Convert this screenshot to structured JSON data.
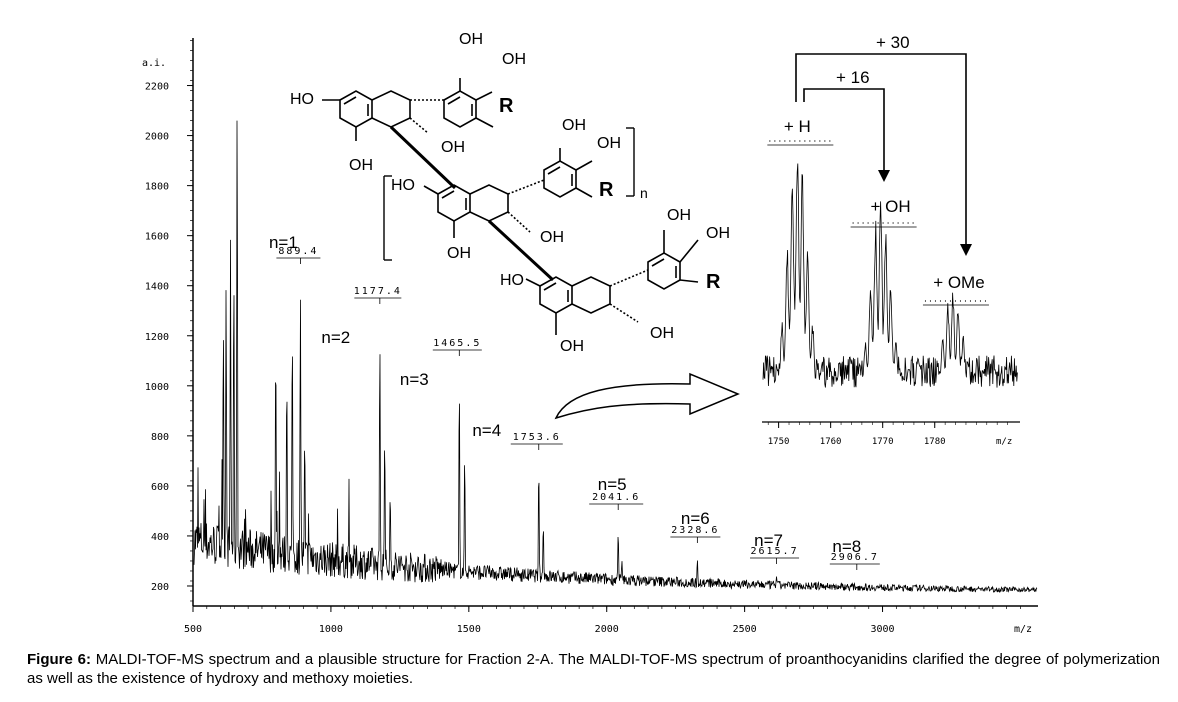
{
  "caption": {
    "label": "Figure 6:",
    "text": "MALDI-TOF-MS spectrum and a plausible structure for Fraction 2-A. The MALDI-TOF-MS spectrum of proanthocyanidins clarified the degree of polymerization as well as the existence of hydroxy and methoxy moieties."
  },
  "chart_data": [
    {
      "type": "line",
      "title": "",
      "xlabel": "m/z",
      "ylabel": "a.i.",
      "xlim": [
        500,
        3560
      ],
      "ylim": [
        120,
        2390
      ],
      "x_ticks": [
        500,
        1000,
        1500,
        2000,
        2500,
        3000
      ],
      "y_ticks": [
        200,
        400,
        600,
        800,
        1000,
        1200,
        1400,
        1600,
        1800,
        2000,
        2200
      ],
      "grid": false,
      "peaks": [
        {
          "n_label": "n=1",
          "mz_label": "889.4",
          "mz": 889.4,
          "intensity": 1480
        },
        {
          "n_label": "n=2",
          "mz_label": "1177.4",
          "mz": 1177.4,
          "intensity": 1330
        },
        {
          "n_label": "n=3",
          "mz_label": "1465.5",
          "mz": 1465.5,
          "intensity": 1140
        },
        {
          "n_label": "n=4",
          "mz_label": "1753.6",
          "mz": 1753.6,
          "intensity": 760
        },
        {
          "n_label": "n=5",
          "mz_label": "2041.6",
          "mz": 2041.6,
          "intensity": 450
        },
        {
          "n_label": "n=6",
          "mz_label": "2328.6",
          "mz": 2328.6,
          "intensity": 320
        },
        {
          "n_label": "n=7",
          "mz_label": "2615.7",
          "mz": 2615.7,
          "intensity": 240
        },
        {
          "n_label": "n=8",
          "mz_label": "2906.7",
          "mz": 2906.7,
          "intensity": 190
        }
      ]
    },
    {
      "type": "line",
      "title": "",
      "xlabel": "m/z",
      "xlim": [
        1747,
        1796
      ],
      "x_ticks": [
        1750,
        1760,
        1770,
        1780
      ],
      "ylim": [
        0,
        1
      ],
      "grid": false,
      "peaks": [
        {
          "label": "+ H",
          "mz": 1753.6,
          "intensity": 0.95
        },
        {
          "label": "+ OH",
          "mz": 1769.6,
          "intensity": 0.72
        },
        {
          "label": "+ OMe",
          "mz": 1783.5,
          "intensity": 0.38
        }
      ],
      "annotations": [
        "+ 30",
        "+ 16"
      ]
    }
  ],
  "structure": {
    "oh": "OH",
    "ho": "HO",
    "r": "R",
    "n": "n"
  }
}
